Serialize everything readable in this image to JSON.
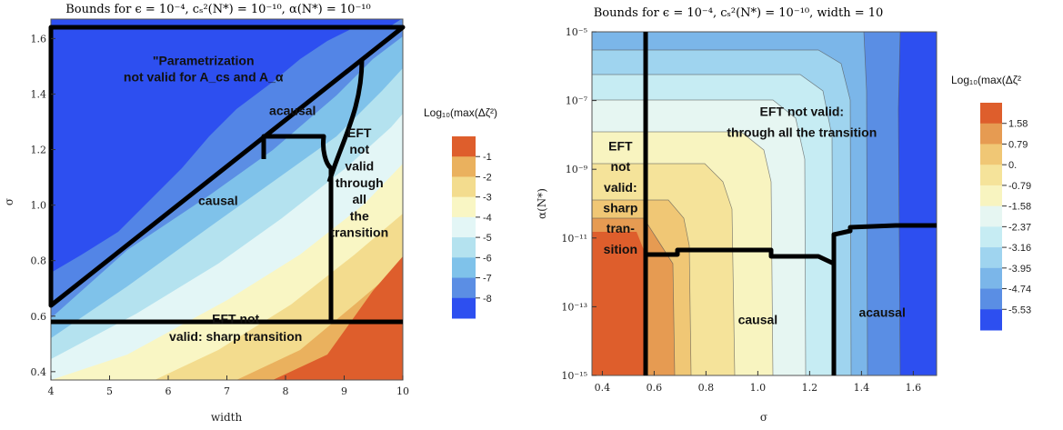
{
  "chart_data": [
    {
      "type": "contour",
      "title": "Bounds for ϵ = 10⁻⁴, cₛ²(N*) = 10⁻¹⁰, α(N*) = 10⁻¹⁰",
      "xlabel": "width",
      "ylabel": "σ",
      "xlim": [
        4,
        10
      ],
      "ylim": [
        0.37,
        1.67
      ],
      "xticks": [
        "4",
        "5",
        "6",
        "7",
        "8",
        "9",
        "10"
      ],
      "yticks": [
        "0.4",
        "0.6",
        "0.8",
        "1.0",
        "1.2",
        "1.4",
        "1.6"
      ],
      "legend": {
        "title": "Log₁₀(max(Δζ²)",
        "levels": [
          "-1",
          "-2",
          "-3",
          "-4",
          "-5",
          "-6",
          "-7",
          "-8"
        ],
        "colors": [
          "#de5e2c",
          "#eab15e",
          "#f3dc8e",
          "#f9f6c4",
          "#e3f6f6",
          "#b4e2ef",
          "#7fc2ea",
          "#5b8ee4",
          "#2d4ff0"
        ]
      },
      "annotations": [
        {
          "text": "\"Parametrization",
          "x": 6.6,
          "y": 1.505
        },
        {
          "text": "not valid for A_cs and A_α",
          "x": 6.6,
          "y": 1.445
        },
        {
          "text": "acausal",
          "x": 8.12,
          "y": 1.325
        },
        {
          "text": "EFT",
          "x": 9.26,
          "y": 1.245
        },
        {
          "text": "not",
          "x": 9.26,
          "y": 1.185
        },
        {
          "text": "valid",
          "x": 9.26,
          "y": 1.125
        },
        {
          "text": "through",
          "x": 9.26,
          "y": 1.065
        },
        {
          "text": "all",
          "x": 9.26,
          "y": 1.005
        },
        {
          "text": "the",
          "x": 9.26,
          "y": 0.945
        },
        {
          "text": "transition",
          "x": 9.26,
          "y": 0.885
        },
        {
          "text": "causal",
          "x": 6.85,
          "y": 1.0
        },
        {
          "text": "EFT not",
          "x": 7.15,
          "y": 0.575
        },
        {
          "text": "valid: sharp transition",
          "x": 7.15,
          "y": 0.51
        }
      ]
    },
    {
      "type": "contour",
      "title": "Bounds for ϵ = 10⁻⁴, cₛ²(N*) = 10⁻¹⁰, width = 10",
      "xlabel": "σ",
      "ylabel": "α(N*)",
      "xlim": [
        0.36,
        1.69
      ],
      "ylim_log10": [
        -15,
        -5
      ],
      "xticks": [
        "0.4",
        "0.6",
        "0.8",
        "1.0",
        "1.2",
        "1.4",
        "1.6"
      ],
      "yticks": [
        "10⁻¹⁵",
        "10⁻¹³",
        "10⁻¹¹",
        "10⁻⁹",
        "10⁻⁷",
        "10⁻⁵"
      ],
      "legend": {
        "title": "Log₁₀(max(Δζ²",
        "levels": [
          "1.58",
          "0.79",
          "0.",
          "-0.79",
          "-1.58",
          "-2.37",
          "-3.16",
          "-3.95",
          "-4.74",
          "-5.53"
        ],
        "colors": [
          "#de5e2c",
          "#e69b52",
          "#f0c775",
          "#f5e39a",
          "#f8f4c0",
          "#e6f6f2",
          "#c6ecf3",
          "#9fd4ef",
          "#7bb6e9",
          "#5a8ee4",
          "#2d4ff0"
        ]
      },
      "annotations": [
        {
          "text": "EFT",
          "x": 0.47,
          "y": -8.45
        },
        {
          "text": "not",
          "x": 0.47,
          "y": -9.05
        },
        {
          "text": "valid:",
          "x": 0.47,
          "y": -9.65
        },
        {
          "text": "sharp",
          "x": 0.47,
          "y": -10.25
        },
        {
          "text": "tran-",
          "x": 0.47,
          "y": -10.85
        },
        {
          "text": "sition",
          "x": 0.47,
          "y": -11.45
        },
        {
          "text": "EFT not valid:",
          "x": 1.17,
          "y": -7.45
        },
        {
          "text": "through all the transition",
          "x": 1.17,
          "y": -8.05
        },
        {
          "text": "causal",
          "x": 1.0,
          "y": -13.5
        },
        {
          "text": "acausal",
          "x": 1.48,
          "y": -13.3
        }
      ]
    }
  ]
}
